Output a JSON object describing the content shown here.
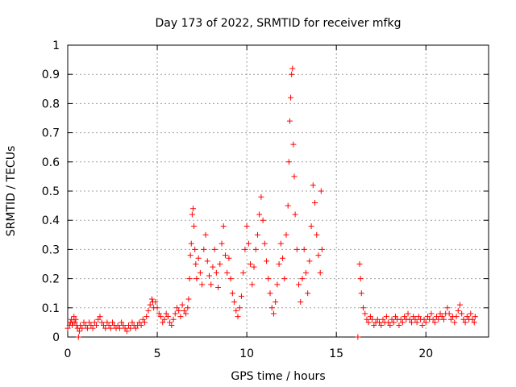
{
  "chart_data": {
    "type": "scatter",
    "title": "Day 173 of 2022, SRMTID for receiver mfkg",
    "xlabel": "GPS time / hours",
    "ylabel": "SRMTID / TECUs",
    "xlim": [
      0,
      23.5
    ],
    "ylim": [
      0,
      1
    ],
    "xticks": [
      0,
      5,
      10,
      15,
      20
    ],
    "xtick_labels": [
      "0",
      "5",
      "10",
      "15",
      "20"
    ],
    "yticks": [
      0,
      0.1,
      0.2,
      0.3,
      0.4,
      0.5,
      0.6,
      0.7,
      0.8,
      0.9,
      1
    ],
    "ytick_labels": [
      "0",
      "0.1",
      "0.2",
      "0.3",
      "0.4",
      "0.5",
      "0.6",
      "0.7",
      "0.8",
      "0.9",
      "1"
    ],
    "grid": true,
    "marker": "+",
    "color": "#ff0000",
    "series": [
      {
        "name": "SRMTID",
        "points": [
          [
            0.0,
            0.03
          ],
          [
            0.1,
            0.04
          ],
          [
            0.15,
            0.05
          ],
          [
            0.2,
            0.06
          ],
          [
            0.25,
            0.04
          ],
          [
            0.3,
            0.05
          ],
          [
            0.35,
            0.07
          ],
          [
            0.4,
            0.05
          ],
          [
            0.45,
            0.06
          ],
          [
            0.5,
            0.04
          ],
          [
            0.55,
            0.03
          ],
          [
            0.6,
            0.0
          ],
          [
            0.65,
            0.02
          ],
          [
            0.7,
            0.04
          ],
          [
            0.8,
            0.03
          ],
          [
            0.9,
            0.05
          ],
          [
            1.0,
            0.04
          ],
          [
            1.1,
            0.03
          ],
          [
            1.2,
            0.05
          ],
          [
            1.3,
            0.04
          ],
          [
            1.4,
            0.03
          ],
          [
            1.5,
            0.05
          ],
          [
            1.6,
            0.04
          ],
          [
            1.7,
            0.06
          ],
          [
            1.8,
            0.07
          ],
          [
            1.9,
            0.05
          ],
          [
            2.0,
            0.04
          ],
          [
            2.1,
            0.03
          ],
          [
            2.2,
            0.05
          ],
          [
            2.3,
            0.04
          ],
          [
            2.4,
            0.03
          ],
          [
            2.5,
            0.05
          ],
          [
            2.6,
            0.04
          ],
          [
            2.7,
            0.03
          ],
          [
            2.8,
            0.04
          ],
          [
            2.9,
            0.03
          ],
          [
            3.0,
            0.05
          ],
          [
            3.1,
            0.04
          ],
          [
            3.2,
            0.03
          ],
          [
            3.3,
            0.02
          ],
          [
            3.4,
            0.04
          ],
          [
            3.5,
            0.03
          ],
          [
            3.6,
            0.05
          ],
          [
            3.7,
            0.04
          ],
          [
            3.8,
            0.03
          ],
          [
            3.9,
            0.04
          ],
          [
            4.0,
            0.05
          ],
          [
            4.1,
            0.04
          ],
          [
            4.2,
            0.06
          ],
          [
            4.3,
            0.05
          ],
          [
            4.4,
            0.07
          ],
          [
            4.5,
            0.09
          ],
          [
            4.6,
            0.11
          ],
          [
            4.7,
            0.13
          ],
          [
            4.75,
            0.12
          ],
          [
            4.8,
            0.1
          ],
          [
            4.9,
            0.12
          ],
          [
            5.0,
            0.1
          ],
          [
            5.1,
            0.08
          ],
          [
            5.2,
            0.07
          ],
          [
            5.3,
            0.05
          ],
          [
            5.4,
            0.06
          ],
          [
            5.5,
            0.08
          ],
          [
            5.6,
            0.07
          ],
          [
            5.7,
            0.05
          ],
          [
            5.8,
            0.04
          ],
          [
            5.9,
            0.06
          ],
          [
            6.0,
            0.08
          ],
          [
            6.1,
            0.1
          ],
          [
            6.2,
            0.09
          ],
          [
            6.3,
            0.07
          ],
          [
            6.4,
            0.11
          ],
          [
            6.5,
            0.09
          ],
          [
            6.6,
            0.08
          ],
          [
            6.7,
            0.1
          ],
          [
            6.75,
            0.13
          ],
          [
            6.8,
            0.2
          ],
          [
            6.85,
            0.28
          ],
          [
            6.9,
            0.32
          ],
          [
            6.95,
            0.42
          ],
          [
            7.0,
            0.44
          ],
          [
            7.05,
            0.38
          ],
          [
            7.1,
            0.3
          ],
          [
            7.15,
            0.25
          ],
          [
            7.2,
            0.2
          ],
          [
            7.3,
            0.27
          ],
          [
            7.4,
            0.22
          ],
          [
            7.5,
            0.18
          ],
          [
            7.6,
            0.3
          ],
          [
            7.7,
            0.35
          ],
          [
            7.8,
            0.26
          ],
          [
            7.9,
            0.21
          ],
          [
            8.0,
            0.18
          ],
          [
            8.1,
            0.24
          ],
          [
            8.2,
            0.3
          ],
          [
            8.3,
            0.22
          ],
          [
            8.4,
            0.17
          ],
          [
            8.5,
            0.25
          ],
          [
            8.6,
            0.32
          ],
          [
            8.7,
            0.38
          ],
          [
            8.8,
            0.28
          ],
          [
            8.9,
            0.22
          ],
          [
            9.0,
            0.27
          ],
          [
            9.1,
            0.2
          ],
          [
            9.2,
            0.15
          ],
          [
            9.3,
            0.12
          ],
          [
            9.4,
            0.09
          ],
          [
            9.5,
            0.07
          ],
          [
            9.6,
            0.1
          ],
          [
            9.7,
            0.14
          ],
          [
            9.8,
            0.22
          ],
          [
            9.9,
            0.3
          ],
          [
            10.0,
            0.38
          ],
          [
            10.1,
            0.32
          ],
          [
            10.2,
            0.25
          ],
          [
            10.3,
            0.18
          ],
          [
            10.4,
            0.24
          ],
          [
            10.5,
            0.3
          ],
          [
            10.6,
            0.35
          ],
          [
            10.7,
            0.42
          ],
          [
            10.8,
            0.48
          ],
          [
            10.9,
            0.4
          ],
          [
            11.0,
            0.32
          ],
          [
            11.1,
            0.26
          ],
          [
            11.2,
            0.2
          ],
          [
            11.3,
            0.15
          ],
          [
            11.4,
            0.1
          ],
          [
            11.5,
            0.08
          ],
          [
            11.6,
            0.12
          ],
          [
            11.7,
            0.18
          ],
          [
            11.8,
            0.25
          ],
          [
            11.9,
            0.32
          ],
          [
            12.0,
            0.27
          ],
          [
            12.1,
            0.2
          ],
          [
            12.2,
            0.35
          ],
          [
            12.3,
            0.45
          ],
          [
            12.35,
            0.6
          ],
          [
            12.4,
            0.74
          ],
          [
            12.45,
            0.82
          ],
          [
            12.5,
            0.9
          ],
          [
            12.55,
            0.92
          ],
          [
            12.6,
            0.66
          ],
          [
            12.65,
            0.55
          ],
          [
            12.7,
            0.42
          ],
          [
            12.8,
            0.3
          ],
          [
            12.9,
            0.18
          ],
          [
            13.0,
            0.12
          ],
          [
            13.1,
            0.2
          ],
          [
            13.2,
            0.3
          ],
          [
            13.3,
            0.22
          ],
          [
            13.4,
            0.15
          ],
          [
            13.5,
            0.26
          ],
          [
            13.6,
            0.38
          ],
          [
            13.7,
            0.52
          ],
          [
            13.8,
            0.46
          ],
          [
            13.9,
            0.35
          ],
          [
            14.0,
            0.28
          ],
          [
            14.1,
            0.22
          ],
          [
            14.15,
            0.5
          ],
          [
            14.2,
            0.3
          ],
          [
            16.2,
            0.0
          ],
          [
            16.3,
            0.25
          ],
          [
            16.35,
            0.2
          ],
          [
            16.4,
            0.15
          ],
          [
            16.5,
            0.1
          ],
          [
            16.6,
            0.08
          ],
          [
            16.7,
            0.06
          ],
          [
            16.8,
            0.05
          ],
          [
            16.9,
            0.07
          ],
          [
            17.0,
            0.06
          ],
          [
            17.1,
            0.04
          ],
          [
            17.2,
            0.05
          ],
          [
            17.3,
            0.06
          ],
          [
            17.4,
            0.05
          ],
          [
            17.5,
            0.04
          ],
          [
            17.6,
            0.06
          ],
          [
            17.7,
            0.05
          ],
          [
            17.8,
            0.07
          ],
          [
            17.9,
            0.05
          ],
          [
            18.0,
            0.04
          ],
          [
            18.1,
            0.06
          ],
          [
            18.2,
            0.05
          ],
          [
            18.3,
            0.07
          ],
          [
            18.4,
            0.06
          ],
          [
            18.5,
            0.04
          ],
          [
            18.6,
            0.06
          ],
          [
            18.7,
            0.05
          ],
          [
            18.8,
            0.07
          ],
          [
            18.9,
            0.06
          ],
          [
            19.0,
            0.08
          ],
          [
            19.1,
            0.06
          ],
          [
            19.2,
            0.05
          ],
          [
            19.3,
            0.07
          ],
          [
            19.4,
            0.06
          ],
          [
            19.5,
            0.05
          ],
          [
            19.6,
            0.07
          ],
          [
            19.7,
            0.06
          ],
          [
            19.8,
            0.04
          ],
          [
            19.9,
            0.06
          ],
          [
            20.0,
            0.05
          ],
          [
            20.1,
            0.07
          ],
          [
            20.2,
            0.06
          ],
          [
            20.3,
            0.08
          ],
          [
            20.4,
            0.06
          ],
          [
            20.5,
            0.05
          ],
          [
            20.6,
            0.07
          ],
          [
            20.7,
            0.06
          ],
          [
            20.8,
            0.08
          ],
          [
            20.9,
            0.07
          ],
          [
            21.0,
            0.06
          ],
          [
            21.1,
            0.08
          ],
          [
            21.2,
            0.1
          ],
          [
            21.3,
            0.08
          ],
          [
            21.4,
            0.06
          ],
          [
            21.5,
            0.07
          ],
          [
            21.6,
            0.05
          ],
          [
            21.7,
            0.07
          ],
          [
            21.8,
            0.09
          ],
          [
            21.9,
            0.11
          ],
          [
            22.0,
            0.08
          ],
          [
            22.1,
            0.06
          ],
          [
            22.2,
            0.05
          ],
          [
            22.3,
            0.07
          ],
          [
            22.4,
            0.06
          ],
          [
            22.5,
            0.08
          ],
          [
            22.6,
            0.06
          ],
          [
            22.7,
            0.05
          ],
          [
            22.75,
            0.07
          ]
        ]
      }
    ]
  }
}
